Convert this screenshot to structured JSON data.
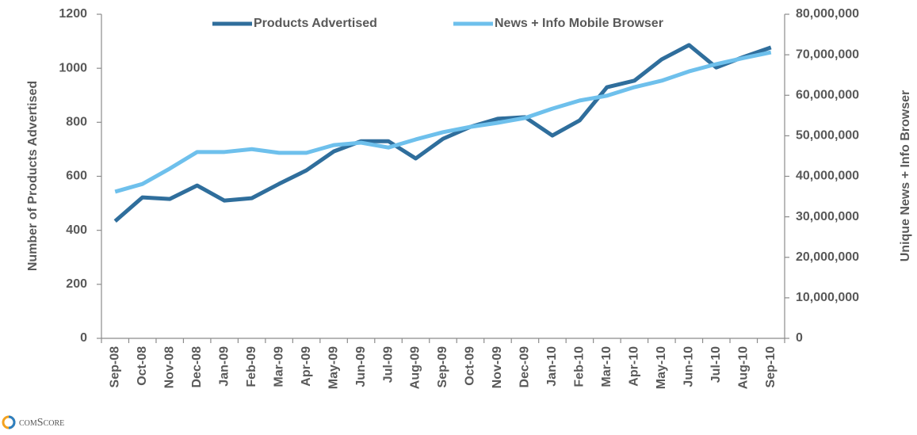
{
  "chart_data": {
    "type": "line",
    "categories": [
      "Sep-08",
      "Oct-08",
      "Nov-08",
      "Dec-08",
      "Jan-09",
      "Feb-09",
      "Mar-09",
      "Apr-09",
      "May-09",
      "Jun-09",
      "Jul-09",
      "Aug-09",
      "Sep-09",
      "Oct-09",
      "Nov-09",
      "Dec-09",
      "Jan-10",
      "Feb-10",
      "Mar-10",
      "Apr-10",
      "May-10",
      "Jun-10",
      "Jul-10",
      "Aug-10",
      "Sep-10"
    ],
    "series": [
      {
        "name": "Products Advertised",
        "color": "#2f6e9c",
        "axis": "y",
        "values": [
          434,
          522,
          516,
          566,
          510,
          519,
          572,
          622,
          692,
          730,
          730,
          666,
          739,
          783,
          813,
          819,
          751,
          807,
          930,
          954,
          1033,
          1086,
          1003,
          1042,
          1077
        ]
      },
      {
        "name": "News + Info Mobile Browser",
        "color": "#6ec0ec",
        "axis": "y2",
        "values": [
          36200000,
          38100000,
          41900000,
          46000000,
          46000000,
          46700000,
          45800000,
          45800000,
          47700000,
          48300000,
          47100000,
          49100000,
          50900000,
          52200000,
          53200000,
          54400000,
          56700000,
          58700000,
          59900000,
          62000000,
          63600000,
          65900000,
          67700000,
          69200000,
          70600000
        ]
      }
    ],
    "ylabel": "Number of Products Advertised",
    "y2label": "Unique News + Info Browser",
    "ylim": [
      0,
      1200
    ],
    "yticks": [
      0,
      200,
      400,
      600,
      800,
      1000,
      1200
    ],
    "y2lim": [
      0,
      80000000
    ],
    "y2ticks": [
      0,
      {
        "value": 10000000,
        "label": "10,000,000"
      },
      {
        "value": 20000000,
        "label": "20,000,000"
      },
      {
        "value": 30000000,
        "label": "30,000,000"
      },
      {
        "value": 40000000,
        "label": "40,000,000"
      },
      {
        "value": 50000000,
        "label": "50,000,000"
      },
      {
        "value": 60000000,
        "label": "60,000,000"
      },
      {
        "value": 70000000,
        "label": "70,000,000"
      },
      {
        "value": 80000000,
        "label": "80,000,000"
      }
    ],
    "grid": false,
    "legend": "top"
  },
  "footer": {
    "logo": "comScore"
  }
}
